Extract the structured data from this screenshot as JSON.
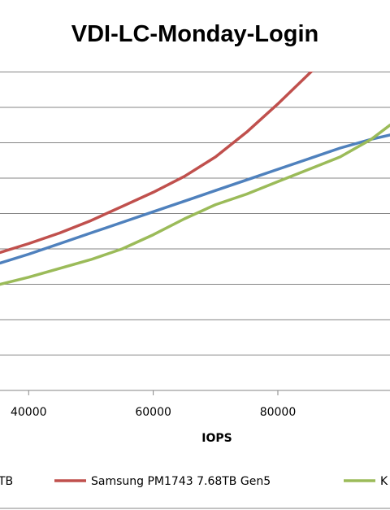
{
  "chart_data": {
    "type": "line",
    "title": "VDI-LC-Monday-Login",
    "xlabel": "IOPS",
    "ylabel": "",
    "xlim": [
      35400,
      98000
    ],
    "ylim": [
      0,
      10
    ],
    "x_ticks": [
      "40000",
      "60000",
      "80000"
    ],
    "x_tick_values": [
      40000,
      60000,
      80000
    ],
    "y_gridlines": [
      1,
      2,
      3,
      4,
      5,
      6,
      7,
      8,
      9
    ],
    "grid": true,
    "legend_position": "bottom",
    "series": [
      {
        "name": "TB",
        "color": "#4F81BD",
        "x": [
          35400,
          40000,
          45000,
          50000,
          55000,
          60000,
          65000,
          70000,
          75000,
          80000,
          85000,
          90000,
          95000,
          98000
        ],
        "y": [
          3.6,
          3.85,
          4.15,
          4.45,
          4.75,
          5.05,
          5.35,
          5.65,
          5.95,
          6.25,
          6.55,
          6.85,
          7.1,
          7.22
        ]
      },
      {
        "name": "Samsung PM1743 7.68TB Gen5",
        "color": "#C0504D",
        "x": [
          35400,
          40000,
          45000,
          50000,
          55000,
          60000,
          65000,
          70000,
          75000,
          80000,
          85000,
          90000,
          94500,
          95500
        ],
        "y": [
          3.9,
          4.15,
          4.45,
          4.8,
          5.2,
          5.6,
          6.05,
          6.6,
          7.3,
          8.1,
          8.95,
          9.8,
          10.55,
          10.4
        ]
      },
      {
        "name": "K",
        "color": "#9BBB59",
        "x": [
          35400,
          40000,
          45000,
          50000,
          55000,
          60000,
          65000,
          70000,
          75000,
          80000,
          85000,
          90000,
          95000,
          98000
        ],
        "y": [
          3.0,
          3.2,
          3.45,
          3.7,
          4.0,
          4.4,
          4.85,
          5.25,
          5.55,
          5.9,
          6.25,
          6.6,
          7.1,
          7.5
        ]
      }
    ]
  }
}
